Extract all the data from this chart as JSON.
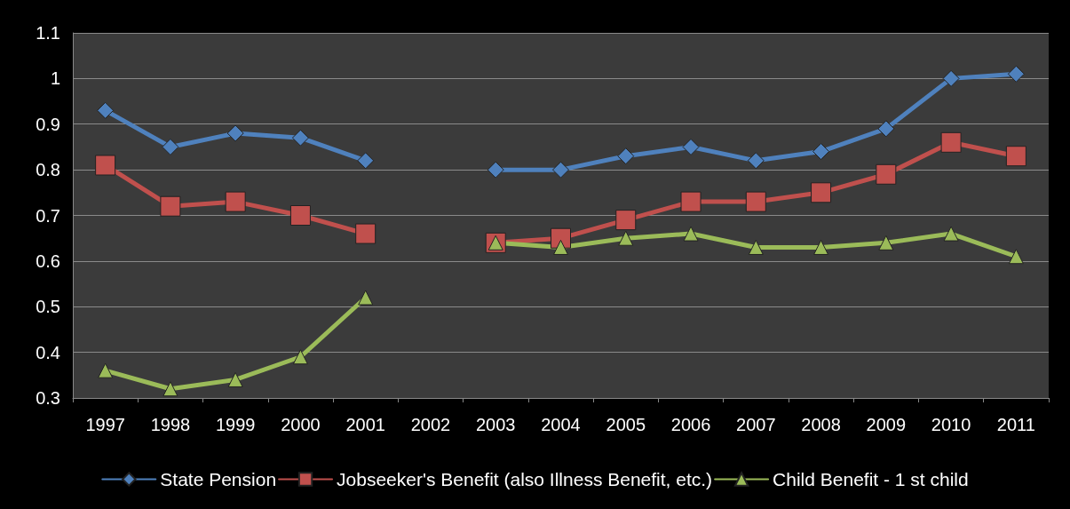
{
  "chart_data": {
    "type": "line",
    "categories": [
      "1997",
      "1998",
      "1999",
      "2000",
      "2001",
      "2002",
      "2003",
      "2004",
      "2005",
      "2006",
      "2007",
      "2008",
      "2009",
      "2010",
      "2011"
    ],
    "series": [
      {
        "name": "State Pension",
        "color": "#4f81bd",
        "marker": "diamond",
        "values": [
          0.93,
          0.85,
          0.88,
          0.87,
          0.82,
          null,
          0.8,
          0.8,
          0.83,
          0.85,
          0.82,
          0.84,
          0.89,
          1.0,
          1.01
        ]
      },
      {
        "name": "Jobseeker's Benefit (also Illness Benefit, etc.)",
        "color": "#c0504d",
        "marker": "square",
        "values": [
          0.81,
          0.72,
          0.73,
          0.7,
          0.66,
          null,
          0.64,
          0.65,
          0.69,
          0.73,
          0.73,
          0.75,
          0.79,
          0.86,
          0.83
        ]
      },
      {
        "name": "Child Benefit - 1 st child",
        "color": "#9bbb59",
        "marker": "triangle",
        "values": [
          0.36,
          0.32,
          0.34,
          0.39,
          0.52,
          null,
          0.64,
          0.63,
          0.65,
          0.66,
          0.63,
          0.63,
          0.64,
          0.66,
          0.61
        ]
      }
    ],
    "ylim": [
      0.3,
      1.1
    ],
    "yticks": [
      0.3,
      0.4,
      0.5,
      0.6,
      0.7,
      0.8,
      0.9,
      1,
      1.1
    ],
    "grid": "y",
    "legend": "bottom",
    "line_style": "solid"
  }
}
